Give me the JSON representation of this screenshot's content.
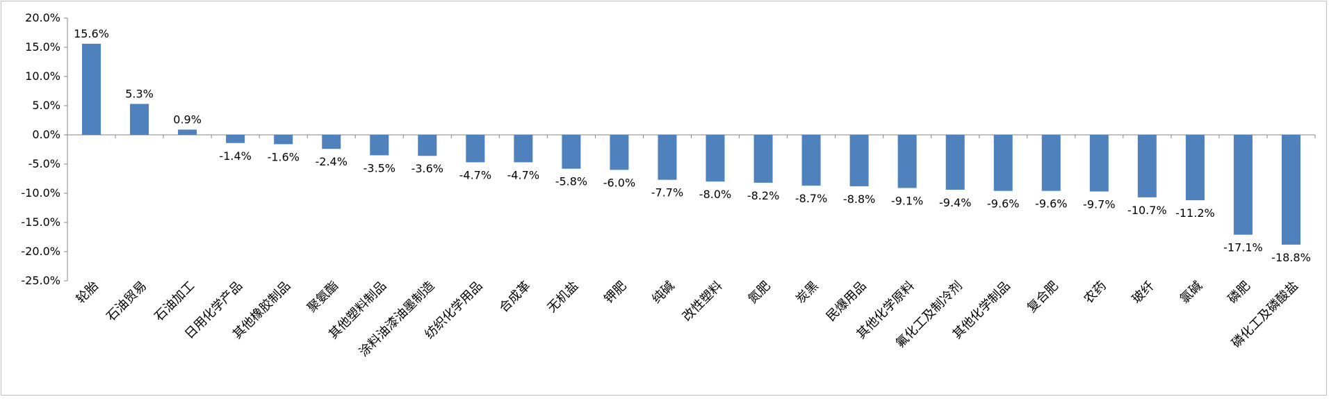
{
  "chart_data": {
    "type": "bar",
    "title": "",
    "xlabel": "",
    "ylabel": "",
    "ylim": [
      -25,
      20
    ],
    "y_ticks": [
      20,
      15,
      10,
      5,
      0,
      -5,
      -10,
      -15,
      -20,
      -25
    ],
    "y_tick_labels": [
      "20.0%",
      "15.0%",
      "10.0%",
      "5.0%",
      "0.0%",
      "-5.0%",
      "-10.0%",
      "-15.0%",
      "-20.0%",
      "-25.0%"
    ],
    "grid": false,
    "legend": "none",
    "bar_color": "#4f81bd",
    "categories": [
      "轮胎",
      "石油贸易",
      "石油加工",
      "日用化学产品",
      "其他橡胶制品",
      "聚氨酯",
      "其他塑料制品",
      "涂料油漆油墨制造",
      "纺织化学用品",
      "合成革",
      "无机盐",
      "钾肥",
      "纯碱",
      "改性塑料",
      "氮肥",
      "炭黑",
      "民爆用品",
      "其他化学原料",
      "氟化工及制冷剂",
      "其他化学制品",
      "复合肥",
      "农药",
      "玻纤",
      "氯碱",
      "磷肥",
      "磷化工及磷酸盐"
    ],
    "values": [
      15.6,
      5.3,
      0.9,
      -1.4,
      -1.6,
      -2.4,
      -3.5,
      -3.6,
      -4.7,
      -4.7,
      -5.8,
      -6.0,
      -7.7,
      -8.0,
      -8.2,
      -8.7,
      -8.8,
      -9.1,
      -9.4,
      -9.6,
      -9.6,
      -9.7,
      -10.7,
      -11.2,
      -17.1,
      -18.8
    ],
    "value_labels": [
      "15.6%",
      "5.3%",
      "0.9%",
      "-1.4%",
      "-1.6%",
      "-2.4%",
      "-3.5%",
      "-3.6%",
      "-4.7%",
      "-4.7%",
      "-5.8%",
      "-6.0%",
      "-7.7%",
      "-8.0%",
      "-8.2%",
      "-8.7%",
      "-8.8%",
      "-9.1%",
      "-9.4%",
      "-9.6%",
      "-9.6%",
      "-9.7%",
      "-10.7%",
      "-11.2%",
      "-17.1%",
      "-18.8%"
    ]
  }
}
